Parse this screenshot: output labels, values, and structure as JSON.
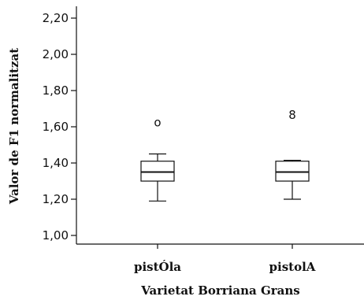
{
  "chart_data": {
    "type": "boxplot",
    "xlabel": "Varietat Borriana Grans",
    "ylabel": "Valor de F1 normalitzat",
    "ylim": [
      0.98,
      2.23
    ],
    "yticks": [
      1.0,
      1.2,
      1.4,
      1.6,
      1.8,
      2.0,
      2.2
    ],
    "ytick_labels": [
      "1,00",
      "1,20",
      "1,40",
      "1,60",
      "1,80",
      "2,00",
      "2,20"
    ],
    "grid": false,
    "categories": [
      "pistÓla",
      "pistolA"
    ],
    "boxes": [
      {
        "category": "pistÓla",
        "whisker_low": 1.19,
        "q1": 1.3,
        "median": 1.35,
        "q3": 1.41,
        "whisker_high": 1.45,
        "outliers": [
          {
            "value": 1.625,
            "label": "o"
          }
        ]
      },
      {
        "category": "pistolA",
        "whisker_low": 1.2,
        "q1": 1.3,
        "median": 1.35,
        "q3": 1.41,
        "whisker_high": 1.415,
        "outliers": [
          {
            "value": 1.665,
            "label": "8"
          }
        ]
      }
    ]
  }
}
